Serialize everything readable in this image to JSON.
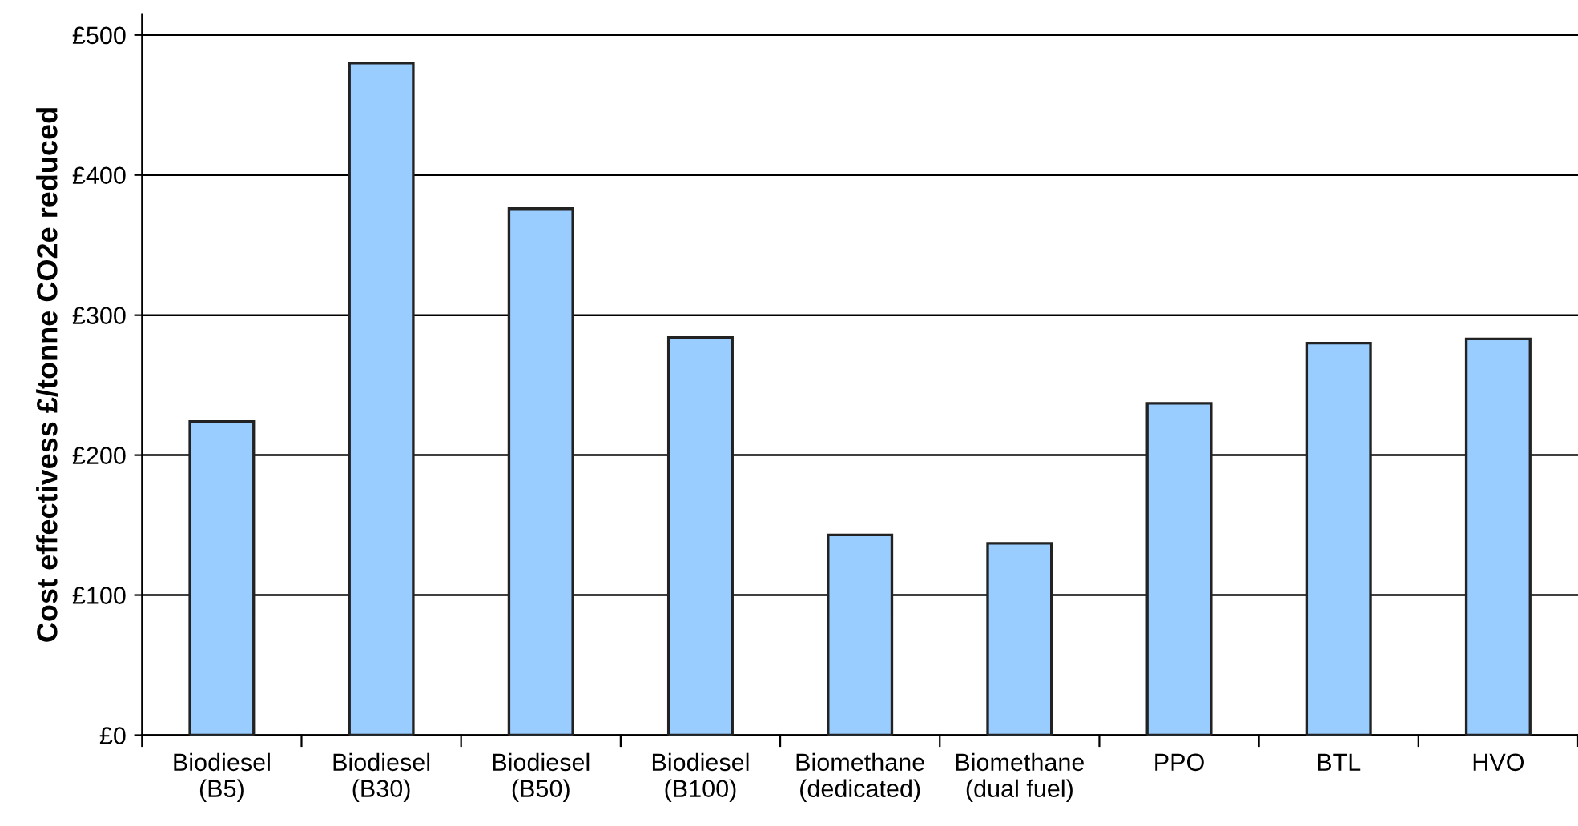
{
  "chart_data": {
    "type": "bar",
    "ylabel": "Cost effectivess £/tonne CO2e reduced",
    "categories": [
      "Biodiesel\n(B5)",
      "Biodiesel\n(B30)",
      "Biodiesel\n(B50)",
      "Biodiesel\n(B100)",
      "Biomethane\n(dedicated)",
      "Biomethane\n(dual fuel)",
      "PPO",
      "BTL",
      "HVO"
    ],
    "values": [
      224,
      480,
      376,
      284,
      143,
      137,
      237,
      280,
      283
    ],
    "color": "#99ccff",
    "ylim": [
      0,
      515
    ],
    "yticks": [
      {
        "value": 0,
        "label": "£0"
      },
      {
        "value": 100,
        "label": "£100"
      },
      {
        "value": 200,
        "label": "£200"
      },
      {
        "value": 300,
        "label": "£300"
      },
      {
        "value": 400,
        "label": "£400"
      },
      {
        "value": 500,
        "label": "£500"
      }
    ],
    "grid": "y",
    "legend": false
  }
}
